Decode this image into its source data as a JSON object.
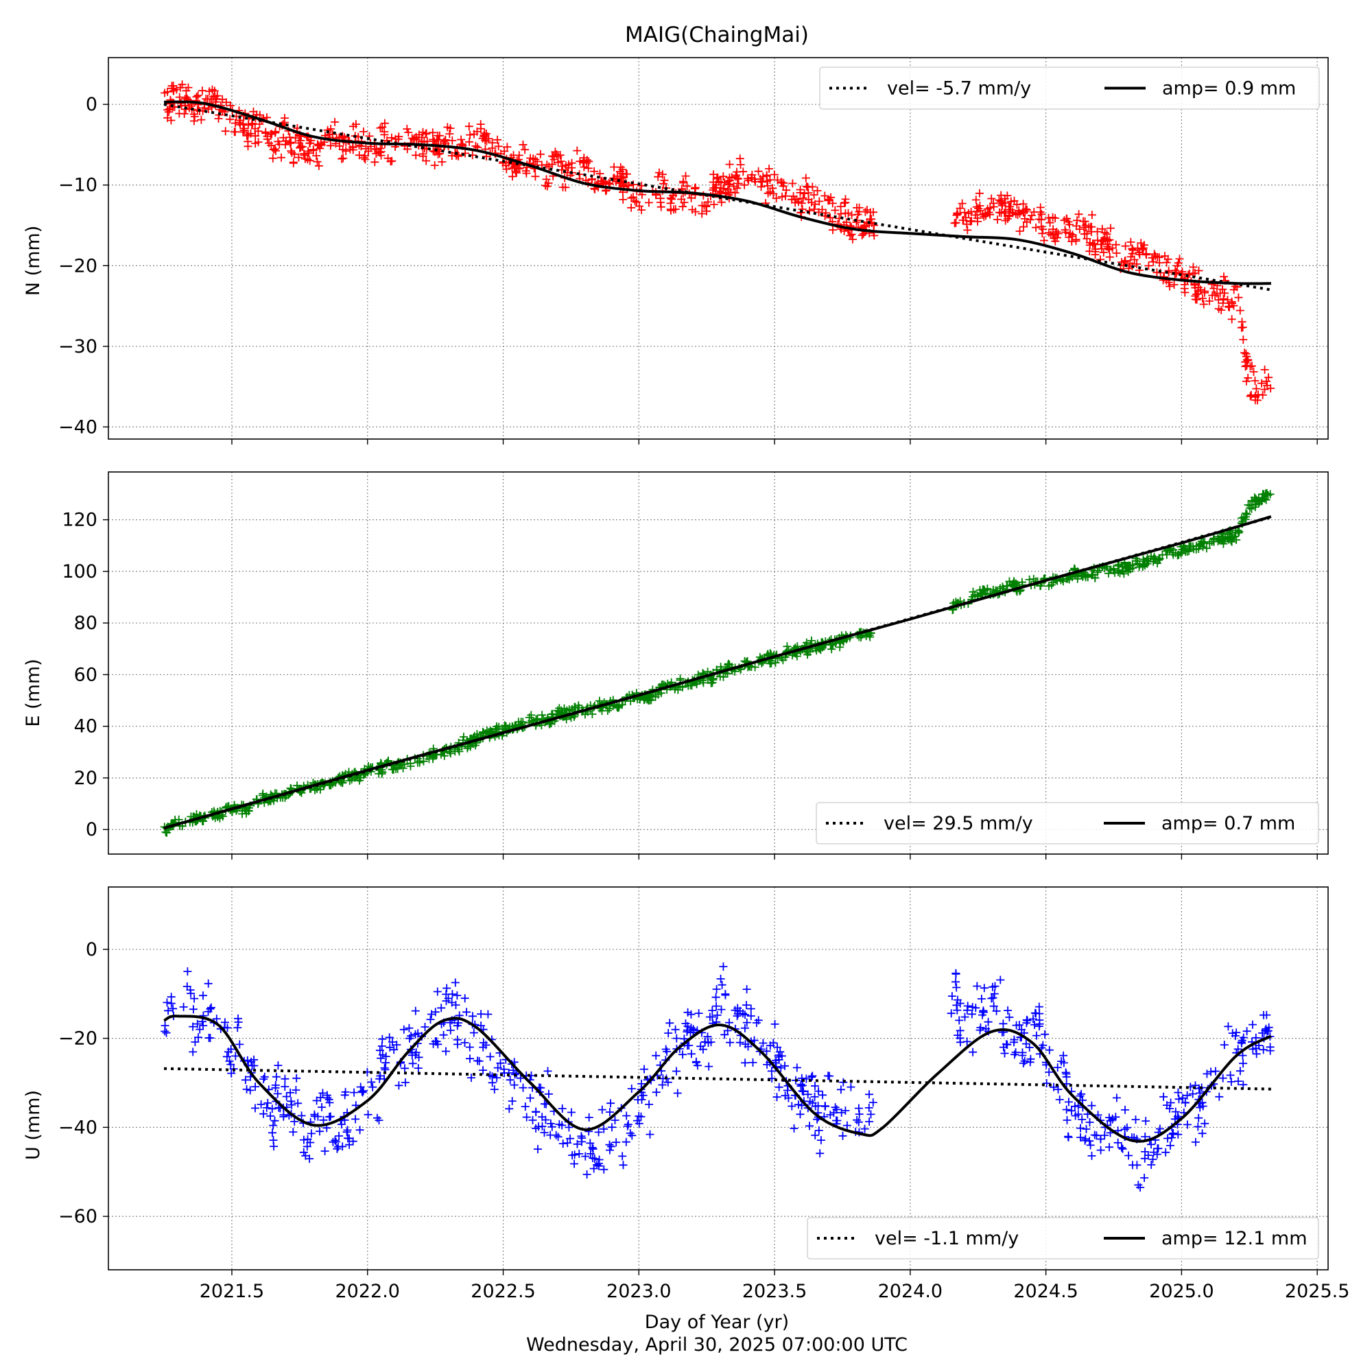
{
  "chart_data": {
    "type": "scatter",
    "title": "MAIG(ChaingMai)",
    "xlabel": "Day of Year (yr)",
    "footer": "Wednesday, April 30, 2025 07:00:00 UTC",
    "x_ticks": [
      "2021.5",
      "2022.0",
      "2022.5",
      "2023.0",
      "2023.5",
      "2024.0",
      "2024.5",
      "2025.0",
      "2025.5"
    ],
    "xlim": [
      2021.045,
      2025.54
    ],
    "x_range": [
      2021.25,
      2025.33
    ],
    "data_gaps": [
      [
        2023.87,
        2024.15
      ]
    ],
    "grid": true,
    "panels": [
      {
        "ylabel": "N (mm)",
        "ylim": [
          -41.5,
          5.8
        ],
        "y_ticks": [
          "0",
          "−10",
          "−20",
          "−30",
          "−40"
        ],
        "y_tick_values": [
          0,
          -10,
          -20,
          -30,
          -40
        ],
        "marker": "+",
        "color": "#ff0000",
        "legend": {
          "position": "top-right",
          "vel_label": "vel= -5.7 mm/y",
          "amp_label": "amp= 0.9 mm"
        },
        "velocity_mm_per_yr": -5.7,
        "amplitude_mm": 0.9,
        "dotted_fit": {
          "x": [
            2021.25,
            2025.33
          ],
          "y": [
            0.0,
            -23.0
          ]
        },
        "solid_fit": {
          "x": [
            2021.25,
            2021.4,
            2021.6,
            2021.8,
            2022.0,
            2022.2,
            2022.4,
            2022.6,
            2022.8,
            2023.0,
            2023.2,
            2023.4,
            2023.6,
            2023.8,
            2024.0,
            2024.2,
            2024.4,
            2024.6,
            2024.8,
            2025.0,
            2025.2,
            2025.33
          ],
          "y": [
            0.3,
            0.1,
            -1.8,
            -4.0,
            -4.8,
            -5.0,
            -5.7,
            -7.6,
            -9.8,
            -10.7,
            -11.0,
            -12.0,
            -14.0,
            -15.5,
            -16.0,
            -16.4,
            -16.8,
            -18.5,
            -20.8,
            -21.8,
            -22.2,
            -22.2
          ]
        },
        "trend": {
          "x": [
            2021.25,
            2021.4,
            2021.6,
            2021.8,
            2022.0,
            2022.2,
            2022.4,
            2022.6,
            2022.8,
            2023.0,
            2023.2,
            2023.4,
            2023.6,
            2023.8,
            2024.15,
            2024.3,
            2024.5,
            2024.7,
            2024.9,
            2025.1,
            2025.2,
            2025.25,
            2025.33
          ],
          "y": [
            0.5,
            -0.5,
            -3.0,
            -5.5,
            -4.8,
            -5.2,
            -5.0,
            -7.5,
            -8.5,
            -11.0,
            -11.5,
            -9.0,
            -12.0,
            -14.5,
            -14.5,
            -12.0,
            -15.0,
            -17.0,
            -20.0,
            -23.0,
            -24.5,
            -34.0,
            -36.0
          ]
        },
        "scatter_sd": 1.6,
        "n_points": 1150
      },
      {
        "ylabel": "E (mm)",
        "ylim": [
          -9.5,
          138.5
        ],
        "y_ticks": [
          "0",
          "20",
          "40",
          "60",
          "80",
          "100",
          "120"
        ],
        "y_tick_values": [
          0,
          20,
          40,
          60,
          80,
          100,
          120
        ],
        "marker": "+",
        "color": "#008000",
        "legend": {
          "position": "bottom-right",
          "vel_label": "vel= 29.5 mm/y",
          "amp_label": "amp= 0.7 mm"
        },
        "velocity_mm_per_yr": 29.5,
        "amplitude_mm": 0.7,
        "dotted_fit": {
          "x": [
            2021.25,
            2025.33
          ],
          "y": [
            0.5,
            121.0
          ]
        },
        "solid_fit": {
          "x": [
            2021.25,
            2021.5,
            2022.0,
            2022.5,
            2023.0,
            2023.5,
            2024.0,
            2024.5,
            2025.0,
            2025.33
          ],
          "y": [
            0.6,
            8.0,
            23.0,
            37.5,
            52.0,
            67.0,
            81.5,
            96.5,
            111.0,
            121.2
          ]
        },
        "trend": {
          "x": [
            2021.25,
            2021.5,
            2021.8,
            2022.0,
            2022.3,
            2022.5,
            2022.8,
            2023.0,
            2023.3,
            2023.5,
            2023.8,
            2024.15,
            2024.3,
            2024.6,
            2024.8,
            2025.0,
            2025.2,
            2025.25,
            2025.33
          ],
          "y": [
            1.0,
            7.5,
            17.0,
            22.0,
            31.0,
            38.5,
            46.5,
            51.0,
            61.0,
            67.0,
            74.5,
            86.0,
            93.0,
            98.0,
            101.5,
            108.0,
            114.0,
            125.0,
            130.0
          ]
        },
        "scatter_sd": 1.6,
        "n_points": 1150
      },
      {
        "ylabel": "U (mm)",
        "ylim": [
          -72.0,
          14.0
        ],
        "y_ticks": [
          "0",
          "−20",
          "−40",
          "−60"
        ],
        "y_tick_values": [
          0,
          -20,
          -40,
          -60
        ],
        "marker": "+",
        "color": "#0000ff",
        "legend": {
          "position": "bottom-right",
          "vel_label": "vel= -1.1 mm/y",
          "amp_label": "amp= 12.1 mm"
        },
        "velocity_mm_per_yr": -1.1,
        "amplitude_mm": 12.1,
        "dotted_fit": {
          "x": [
            2021.25,
            2025.33
          ],
          "y": [
            -26.8,
            -31.4
          ]
        },
        "solid_fit": {
          "x": [
            2021.25,
            2021.3,
            2021.45,
            2021.6,
            2021.8,
            2022.0,
            2022.15,
            2022.28,
            2022.4,
            2022.6,
            2022.8,
            2023.0,
            2023.15,
            2023.3,
            2023.45,
            2023.65,
            2023.82,
            2023.9,
            2024.1,
            2024.3,
            2024.45,
            2024.6,
            2024.82,
            2025.0,
            2025.2,
            2025.33
          ],
          "y": [
            -16.0,
            -15.0,
            -17.0,
            -30.0,
            -39.5,
            -34.0,
            -23.0,
            -16.0,
            -17.5,
            -30.0,
            -40.5,
            -32.0,
            -22.0,
            -17.0,
            -23.0,
            -37.0,
            -41.5,
            -40.0,
            -28.0,
            -18.5,
            -21.0,
            -33.0,
            -43.0,
            -38.0,
            -24.0,
            -19.5
          ]
        },
        "trend": {
          "x": [
            2021.25,
            2021.3,
            2021.45,
            2021.6,
            2021.8,
            2022.0,
            2022.15,
            2022.28,
            2022.4,
            2022.6,
            2022.8,
            2023.0,
            2023.15,
            2023.3,
            2023.45,
            2023.65,
            2023.82,
            2023.87,
            2024.15,
            2024.3,
            2024.45,
            2024.6,
            2024.82,
            2025.0,
            2025.2,
            2025.33
          ],
          "y": [
            -16.0,
            -12.0,
            -18.0,
            -30.0,
            -42.0,
            -33.0,
            -22.0,
            -15.0,
            -20.0,
            -33.0,
            -47.0,
            -37.0,
            -24.0,
            -15.0,
            -22.0,
            -36.0,
            -39.0,
            -38.0,
            -12.0,
            -15.0,
            -20.0,
            -35.0,
            -46.0,
            -38.0,
            -23.0,
            -20.0
          ]
        },
        "scatter_sd": 5.5,
        "n_points": 900
      }
    ]
  }
}
